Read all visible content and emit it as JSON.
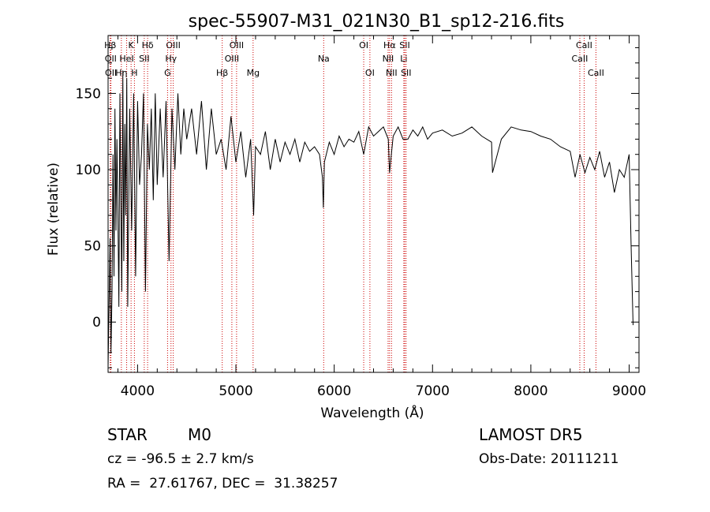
{
  "chart_data": {
    "type": "line",
    "title": "spec-55907-M31_021N30_B1_sp12-216.fits",
    "xlabel": "Wavelength (Å)",
    "ylabel": "Flux (relative)",
    "xlim": [
      3700,
      9100
    ],
    "ylim": [
      -33,
      188
    ],
    "xticks": [
      4000,
      5000,
      6000,
      7000,
      8000,
      9000
    ],
    "yticks": [
      0,
      50,
      100,
      150
    ],
    "grid": false,
    "line_color": "#000000",
    "marker_color": "#cc0000",
    "series": [
      {
        "x": [
          3700,
          3710,
          3720,
          3730,
          3740,
          3750,
          3760,
          3770,
          3780,
          3790,
          3800,
          3810,
          3820,
          3830,
          3840,
          3850,
          3860,
          3870,
          3880,
          3890,
          3900,
          3920,
          3940,
          3960,
          3980,
          4000,
          4020,
          4040,
          4060,
          4080,
          4100,
          4120,
          4140,
          4160,
          4180,
          4200,
          4230,
          4260,
          4290,
          4320,
          4350,
          4380,
          4410,
          4440,
          4470,
          4500,
          4550,
          4600,
          4650,
          4700,
          4750,
          4800,
          4850,
          4900,
          4950,
          5000,
          5050,
          5100,
          5150,
          5180,
          5200,
          5250,
          5300,
          5350,
          5400,
          5450,
          5500,
          5550,
          5600,
          5650,
          5700,
          5750,
          5800,
          5850,
          5880,
          5890,
          5900,
          5950,
          6000,
          6050,
          6100,
          6150,
          6200,
          6250,
          6300,
          6350,
          6400,
          6450,
          6500,
          6550,
          6563,
          6600,
          6650,
          6700,
          6750,
          6800,
          6850,
          6900,
          6950,
          7000,
          7100,
          7200,
          7300,
          7400,
          7500,
          7600,
          7610,
          7700,
          7800,
          7900,
          8000,
          8100,
          8200,
          8300,
          8400,
          8450,
          8500,
          8550,
          8600,
          8650,
          8700,
          8750,
          8800,
          8850,
          8900,
          8950,
          9000,
          9020,
          9040
        ],
        "y": [
          -30,
          10,
          55,
          -20,
          20,
          110,
          30,
          140,
          60,
          120,
          70,
          10,
          150,
          80,
          20,
          165,
          40,
          130,
          70,
          160,
          10,
          140,
          60,
          150,
          30,
          145,
          90,
          110,
          150,
          20,
          130,
          100,
          140,
          80,
          150,
          90,
          140,
          95,
          145,
          40,
          140,
          100,
          150,
          110,
          140,
          120,
          140,
          110,
          145,
          100,
          140,
          110,
          120,
          100,
          135,
          105,
          125,
          95,
          120,
          70,
          115,
          110,
          125,
          100,
          120,
          105,
          118,
          110,
          120,
          105,
          118,
          112,
          115,
          110,
          95,
          75,
          105,
          118,
          110,
          122,
          115,
          120,
          118,
          125,
          110,
          128,
          122,
          125,
          128,
          120,
          98,
          122,
          128,
          120,
          120,
          126,
          122,
          128,
          120,
          124,
          126,
          122,
          124,
          128,
          122,
          118,
          98,
          120,
          128,
          126,
          125,
          122,
          120,
          115,
          112,
          95,
          110,
          98,
          108,
          100,
          112,
          95,
          105,
          85,
          100,
          95,
          110,
          50,
          -2
        ]
      }
    ],
    "line_markers": [
      {
        "label": "Hβ",
        "x": 3722,
        "row": 1
      },
      {
        "label": "K",
        "x": 3934,
        "row": 1
      },
      {
        "label": "Hδ",
        "x": 4102,
        "row": 1
      },
      {
        "label": "OIII",
        "x": 4363,
        "row": 1
      },
      {
        "label": "OIII",
        "x": 5007,
        "row": 1
      },
      {
        "label": "OI",
        "x": 6300,
        "row": 1
      },
      {
        "label": "Hα",
        "x": 6563,
        "row": 1
      },
      {
        "label": "SII",
        "x": 6717,
        "row": 1
      },
      {
        "label": "CaII",
        "x": 8542,
        "row": 1
      },
      {
        "label": "OII",
        "x": 3727,
        "row": 2
      },
      {
        "label": "HeI",
        "x": 3889,
        "row": 2
      },
      {
        "label": "SII",
        "x": 4068,
        "row": 2
      },
      {
        "label": "Hγ",
        "x": 4340,
        "row": 2
      },
      {
        "label": "OIII",
        "x": 4959,
        "row": 2
      },
      {
        "label": "Na",
        "x": 5893,
        "row": 2
      },
      {
        "label": "NII",
        "x": 6548,
        "row": 2
      },
      {
        "label": "Li",
        "x": 6708,
        "row": 2
      },
      {
        "label": "CaII",
        "x": 8498,
        "row": 2
      },
      {
        "label": "OII",
        "x": 3729,
        "row": 3
      },
      {
        "label": "Hη",
        "x": 3835,
        "row": 3
      },
      {
        "label": "H",
        "x": 3968,
        "row": 3
      },
      {
        "label": "G",
        "x": 4305,
        "row": 3
      },
      {
        "label": "Hβ",
        "x": 4861,
        "row": 3
      },
      {
        "label": "Mg",
        "x": 5175,
        "row": 3
      },
      {
        "label": "OI",
        "x": 6363,
        "row": 3
      },
      {
        "label": "NII",
        "x": 6583,
        "row": 3
      },
      {
        "label": "SII",
        "x": 6731,
        "row": 3
      },
      {
        "label": "CaII",
        "x": 8662,
        "row": 3
      }
    ]
  },
  "info": {
    "class_label": "STAR",
    "subclass": "M0",
    "survey": "LAMOST DR5",
    "cz": "cz = -96.5 ± 2.7 km/s",
    "obs_date": "Obs-Date: 20111211",
    "coords": "RA =  27.61767, DEC =  31.38257"
  }
}
